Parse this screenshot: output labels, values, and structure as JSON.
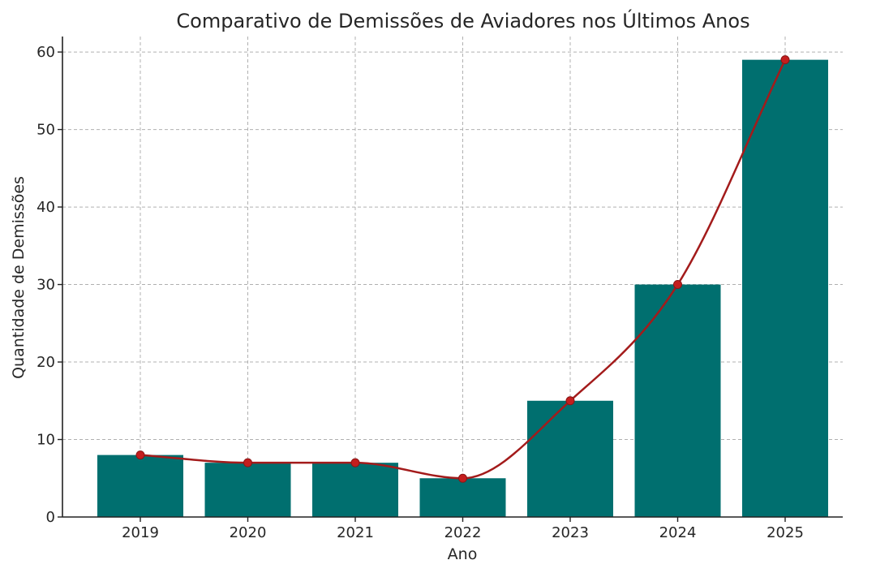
{
  "chart_data": {
    "type": "bar",
    "title": "Comparativo de Demissões de Aviadores nos Últimos Anos",
    "xlabel": "Ano",
    "ylabel": "Quantidade de Demissões",
    "categories": [
      "2019",
      "2020",
      "2021",
      "2022",
      "2023",
      "2024",
      "2025"
    ],
    "values": [
      8,
      7,
      7,
      5,
      15,
      30,
      59
    ],
    "ylim": [
      0,
      62
    ],
    "yticks": [
      0,
      10,
      20,
      30,
      40,
      50,
      60
    ],
    "grid": true,
    "overlay": {
      "type": "line",
      "values": [
        8,
        7,
        7,
        5,
        15,
        30,
        59
      ],
      "smooth": true
    },
    "colors": {
      "bar": "#006F6F",
      "line": "#A31B1B",
      "marker": "#C41E1E"
    }
  }
}
